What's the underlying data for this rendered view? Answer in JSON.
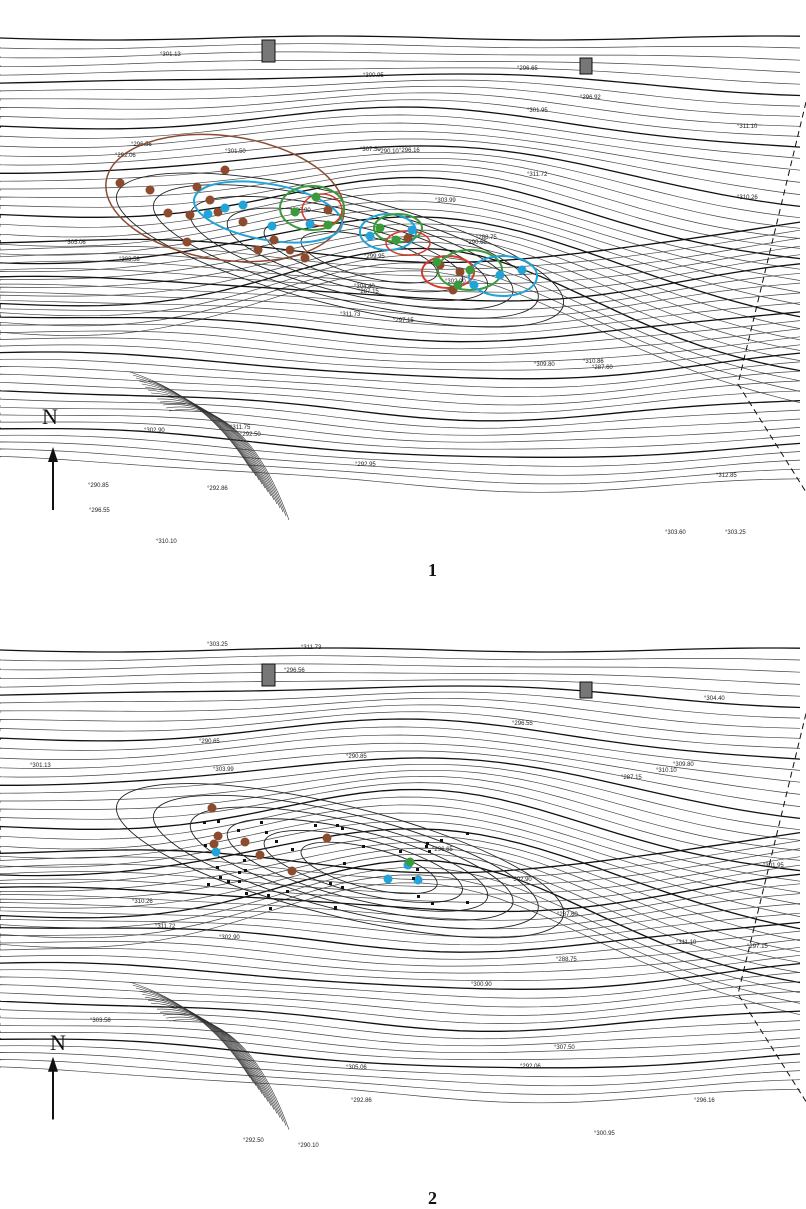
{
  "panels": [
    {
      "number": "1",
      "north": "N",
      "spot_heights": [
        "297.15",
        "292.06",
        "287.15",
        "290.85",
        "290.65",
        "292.50",
        "296.65",
        "296.16",
        "301.95",
        "302.90",
        "301.13",
        "303.25",
        "303.58",
        "311.10",
        "311.73",
        "311.72",
        "310.10",
        "307.50",
        "303.99",
        "302.90",
        "300.90",
        "296.55",
        "292.86",
        "290.10",
        "288.75",
        "287.60",
        "296.56",
        "300.95",
        "305.06",
        "309.80",
        "310.26",
        "304.40",
        "292.95",
        "299.95",
        "301.50",
        "296.92",
        "311.75",
        "303.60",
        "312.85",
        "310.86"
      ],
      "colors": {
        "brown": "#8c4a2f",
        "blue": "#22a4d8",
        "green": "#3a9b3a",
        "red": "#d63a2a"
      }
    },
    {
      "number": "2",
      "north": "N",
      "spot_heights": [
        "297.15",
        "292.06",
        "287.15",
        "290.85",
        "290.65",
        "292.50",
        "296.65",
        "296.16",
        "301.95",
        "302.90",
        "301.13",
        "303.25",
        "303.58",
        "311.10",
        "311.73",
        "311.72",
        "310.10",
        "307.50",
        "303.99",
        "302.90",
        "300.90",
        "296.55",
        "292.86",
        "290.10",
        "288.75",
        "287.60",
        "296.56",
        "300.95",
        "305.06",
        "309.80",
        "310.26",
        "304.40"
      ],
      "colors": {
        "brown": "#8c4a2f",
        "blue": "#22a4d8",
        "green": "#3a9b3a"
      }
    }
  ]
}
